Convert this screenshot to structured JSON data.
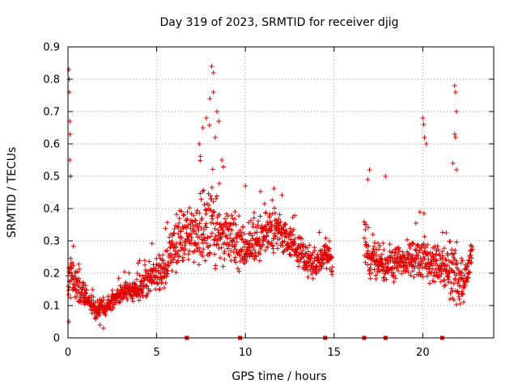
{
  "chart_data": {
    "type": "scatter",
    "title": "Day 319 of 2023, SRMTID for receiver djig",
    "xlabel": "GPS time / hours",
    "ylabel": "SRMTID / TECUs",
    "xlim": [
      0,
      24
    ],
    "ylim": [
      0,
      0.9
    ],
    "x_ticks": [
      0,
      5,
      10,
      15,
      20
    ],
    "x_tick_labels": [
      "0",
      "5",
      "10",
      "15",
      "20"
    ],
    "y_ticks": [
      0,
      0.1,
      0.2,
      0.3,
      0.4,
      0.5,
      0.6,
      0.7,
      0.8,
      0.9
    ],
    "y_tick_labels": [
      "0",
      "0.1",
      "0.2",
      "0.3",
      "0.4",
      "0.5",
      "0.6",
      "0.7",
      "0.8",
      "0.9"
    ],
    "grid": true,
    "marker": "plus",
    "color": "#e00000",
    "data_gap_markers_x": [
      6.7,
      9.7,
      14.5,
      16.7,
      17.9,
      21.1
    ],
    "envelope": {
      "description_units": "hours vs TECU; median / spread used to generate dense points",
      "x": [
        0.0,
        0.3,
        1.0,
        1.5,
        2.0,
        3.0,
        4.0,
        5.0,
        5.5,
        6.0,
        7.0,
        8.0,
        8.5,
        9.0,
        10.0,
        11.0,
        12.0,
        13.0,
        14.0,
        14.5,
        14.9,
        16.7,
        17.0,
        18.0,
        19.0,
        20.0,
        21.0,
        21.8,
        22.3,
        22.8
      ],
      "median": [
        0.2,
        0.17,
        0.13,
        0.09,
        0.09,
        0.14,
        0.15,
        0.2,
        0.22,
        0.3,
        0.32,
        0.36,
        0.34,
        0.3,
        0.28,
        0.32,
        0.33,
        0.27,
        0.22,
        0.26,
        0.24,
        0.3,
        0.25,
        0.22,
        0.24,
        0.25,
        0.22,
        0.2,
        0.15,
        0.28
      ],
      "spread": [
        0.12,
        0.08,
        0.05,
        0.04,
        0.04,
        0.04,
        0.06,
        0.08,
        0.1,
        0.12,
        0.14,
        0.2,
        0.16,
        0.13,
        0.1,
        0.1,
        0.09,
        0.07,
        0.06,
        0.08,
        0.06,
        0.12,
        0.09,
        0.07,
        0.08,
        0.1,
        0.08,
        0.14,
        0.08,
        0.06
      ]
    },
    "segments": [
      [
        0.0,
        14.9
      ],
      [
        16.7,
        22.8
      ]
    ],
    "outliers": [
      {
        "x": 0.05,
        "y": 0.83
      },
      {
        "x": 0.07,
        "y": 0.8
      },
      {
        "x": 0.08,
        "y": 0.76
      },
      {
        "x": 0.1,
        "y": 0.67
      },
      {
        "x": 0.12,
        "y": 0.63
      },
      {
        "x": 0.1,
        "y": 0.55
      },
      {
        "x": 0.15,
        "y": 0.5
      },
      {
        "x": 8.1,
        "y": 0.84
      },
      {
        "x": 8.2,
        "y": 0.82
      },
      {
        "x": 8.0,
        "y": 0.74
      },
      {
        "x": 8.2,
        "y": 0.76
      },
      {
        "x": 8.4,
        "y": 0.7
      },
      {
        "x": 8.5,
        "y": 0.67
      },
      {
        "x": 7.6,
        "y": 0.65
      },
      {
        "x": 7.8,
        "y": 0.68
      },
      {
        "x": 8.3,
        "y": 0.62
      },
      {
        "x": 7.4,
        "y": 0.6
      },
      {
        "x": 20.0,
        "y": 0.68
      },
      {
        "x": 20.05,
        "y": 0.66
      },
      {
        "x": 20.1,
        "y": 0.62
      },
      {
        "x": 20.2,
        "y": 0.6
      },
      {
        "x": 21.8,
        "y": 0.78
      },
      {
        "x": 21.85,
        "y": 0.76
      },
      {
        "x": 21.9,
        "y": 0.7
      },
      {
        "x": 21.8,
        "y": 0.63
      },
      {
        "x": 21.85,
        "y": 0.62
      },
      {
        "x": 21.7,
        "y": 0.54
      },
      {
        "x": 21.9,
        "y": 0.52
      },
      {
        "x": 17.9,
        "y": 0.5
      },
      {
        "x": 17.0,
        "y": 0.52
      },
      {
        "x": 16.9,
        "y": 0.49
      },
      {
        "x": 10.0,
        "y": 0.47
      },
      {
        "x": 2.0,
        "y": 0.03
      },
      {
        "x": 1.8,
        "y": 0.04
      },
      {
        "x": 0.05,
        "y": 0.05
      }
    ]
  }
}
